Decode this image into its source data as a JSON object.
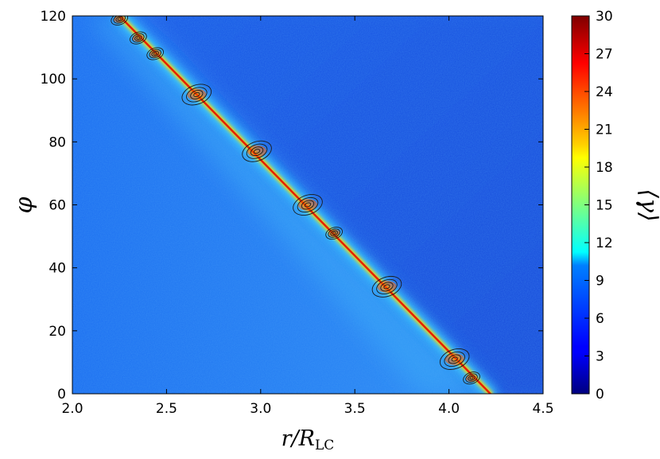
{
  "chart_data": {
    "type": "heatmap",
    "title": "",
    "xlabel": {
      "main": "r/R",
      "subscript": "LC"
    },
    "ylabel": "φ",
    "xlim": [
      2.0,
      4.5
    ],
    "ylim": [
      0,
      120
    ],
    "x_ticks": [
      "2.0",
      "2.5",
      "3.0",
      "3.5",
      "4.0",
      "4.5"
    ],
    "y_ticks": [
      "0",
      "20",
      "40",
      "60",
      "80",
      "100",
      "120"
    ],
    "colorbar": {
      "label": "⟨γ⟩",
      "range": [
        0,
        30
      ],
      "ticks": [
        "0",
        "3",
        "6",
        "9",
        "12",
        "15",
        "18",
        "21",
        "24",
        "27",
        "30"
      ],
      "colormap": "jet"
    },
    "background_level": 6,
    "ridge": {
      "description_points": [
        {
          "r": 2.25,
          "phi": 120
        },
        {
          "r": 4.22,
          "phi": 0
        }
      ],
      "peak_level": 30
    },
    "contour_centers": [
      {
        "r": 2.25,
        "phi": 119
      },
      {
        "r": 2.35,
        "phi": 113
      },
      {
        "r": 2.44,
        "phi": 108
      },
      {
        "r": 2.66,
        "phi": 95
      },
      {
        "r": 2.98,
        "phi": 77
      },
      {
        "r": 3.25,
        "phi": 60
      },
      {
        "r": 3.39,
        "phi": 51
      },
      {
        "r": 3.67,
        "phi": 34
      },
      {
        "r": 4.03,
        "phi": 11
      },
      {
        "r": 4.12,
        "phi": 5
      }
    ]
  }
}
